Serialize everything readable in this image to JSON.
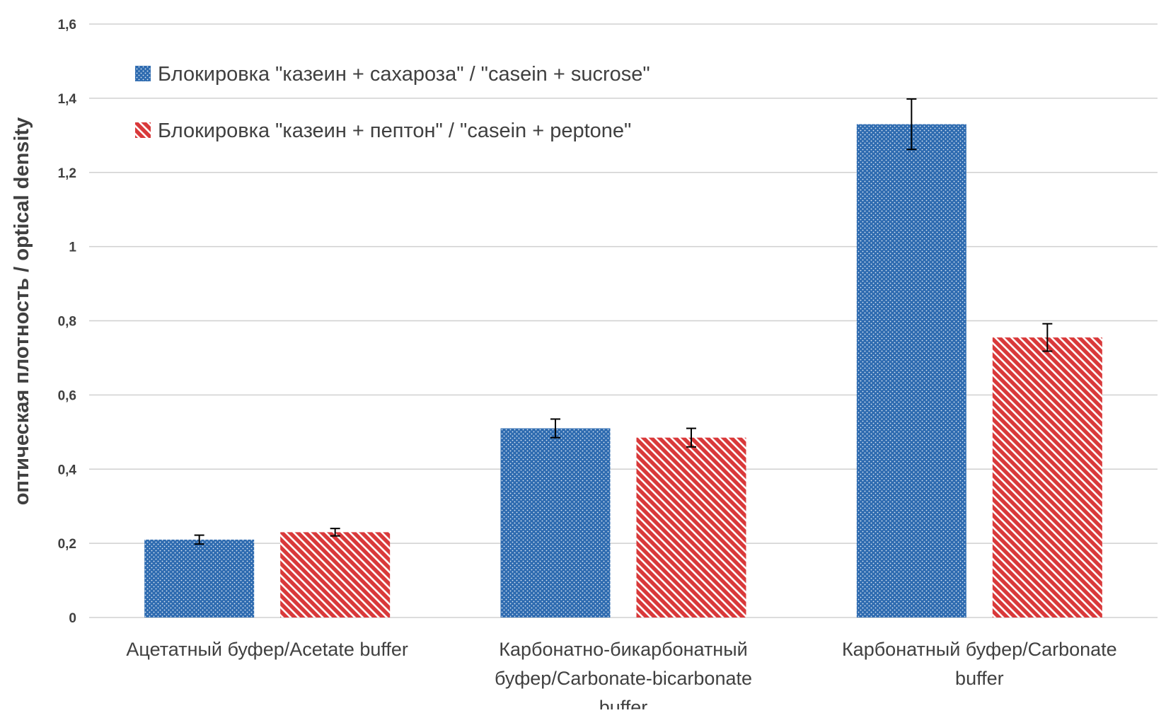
{
  "chart_data": {
    "type": "bar",
    "title": "",
    "xlabel": "",
    "ylabel": "оптическая плотность / optical density",
    "ylim": [
      0,
      1.6
    ],
    "yticks": [
      {
        "value": 0,
        "label": "0"
      },
      {
        "value": 0.2,
        "label": "0,2"
      },
      {
        "value": 0.4,
        "label": "0,4"
      },
      {
        "value": 0.6,
        "label": "0,6"
      },
      {
        "value": 0.8,
        "label": "0,8"
      },
      {
        "value": 1.0,
        "label": "1"
      },
      {
        "value": 1.2,
        "label": "1,2"
      },
      {
        "value": 1.4,
        "label": "1,4"
      },
      {
        "value": 1.6,
        "label": "1,6"
      }
    ],
    "grid": true,
    "legend_position": "top-left",
    "categories": [
      [
        "Ацетатный буфер/Acetate buffer"
      ],
      [
        "Карбонатно-бикарбонатный",
        "буфер/Carbonate-bicarbonate",
        "buffer"
      ],
      [
        "Карбонатный буфер/Carbonate",
        "buffer"
      ]
    ],
    "series": [
      {
        "name": "Блокировка \"казеин + сахароза\" / \"casein + sucrose\"",
        "color": "#2e6bb0",
        "pattern": "dots",
        "values": [
          0.21,
          0.51,
          1.33
        ],
        "errors": [
          0.012,
          0.025,
          0.068
        ]
      },
      {
        "name": "Блокировка \"казеин + пептон\" / \"casein + peptone\"",
        "color": "#d9393a",
        "pattern": "diagonal-stripes",
        "values": [
          0.23,
          0.485,
          0.755
        ],
        "errors": [
          0.01,
          0.025,
          0.037
        ]
      }
    ]
  }
}
